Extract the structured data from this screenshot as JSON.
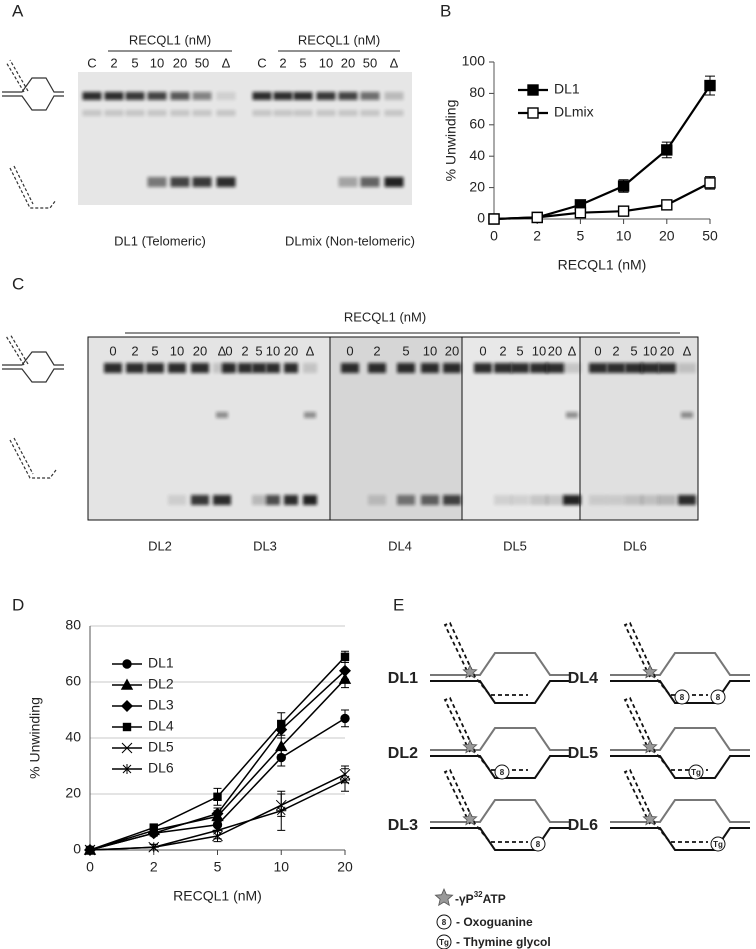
{
  "panels": [
    "A",
    "B",
    "C",
    "D",
    "E"
  ],
  "gel_a": {
    "groups": [
      {
        "header": "RECQL1 (nM)",
        "lanes": [
          "C",
          "2",
          "5",
          "10",
          "20",
          "50",
          "Δ"
        ],
        "name": "DL1 (Telomeric)"
      },
      {
        "header": "RECQL1 (nM)",
        "lanes": [
          "C",
          "2",
          "5",
          "10",
          "20",
          "50",
          "Δ"
        ],
        "name": "DLmix (Non-telomeric)"
      }
    ]
  },
  "gel_c": {
    "header": "RECQL1 (nM)",
    "groups": [
      {
        "name": "DL2",
        "lanes": [
          "0",
          "2",
          "5",
          "10",
          "20",
          "Δ"
        ]
      },
      {
        "name": "DL3",
        "lanes": [
          "0",
          "2",
          "5",
          "10",
          "20",
          "Δ"
        ]
      },
      {
        "name": "DL4",
        "lanes": [
          "0",
          "2",
          "5",
          "10",
          "20"
        ]
      },
      {
        "name": "DL5",
        "lanes": [
          "0",
          "2",
          "5",
          "10",
          "20",
          "Δ"
        ]
      },
      {
        "name": "DL6",
        "lanes": [
          "0",
          "2",
          "5",
          "10",
          "20",
          "Δ"
        ]
      }
    ]
  },
  "chart_data": [
    {
      "type": "line",
      "x_label": "RECQL1 (nM)",
      "y_label": "% Unwinding",
      "categories": [
        "0",
        "2",
        "5",
        "10",
        "20",
        "50"
      ],
      "ylim": [
        0,
        100
      ],
      "yticks": [
        0,
        20,
        40,
        60,
        80,
        100
      ],
      "grid": false,
      "legend": "top-left",
      "series": [
        {
          "name": "DL1",
          "color": "#000000",
          "marker": "square-filled",
          "values": [
            0,
            1,
            9,
            21,
            44,
            85
          ],
          "errors": [
            0,
            0,
            2,
            4,
            5,
            6
          ]
        },
        {
          "name": "DLmix",
          "color": "#000000",
          "marker": "square-open",
          "values": [
            0,
            1,
            4,
            5,
            9,
            23
          ],
          "errors": [
            0,
            0,
            1,
            3,
            2,
            4
          ]
        }
      ]
    },
    {
      "type": "line",
      "x_label": "RECQL1 (nM)",
      "y_label": "% Unwinding",
      "categories": [
        "0",
        "2",
        "5",
        "10",
        "20"
      ],
      "ylim": [
        0,
        80
      ],
      "yticks": [
        0,
        20,
        40,
        60,
        80
      ],
      "grid": true,
      "legend": "top-left",
      "series": [
        {
          "name": "DL1",
          "color": "#000000",
          "marker": "circle",
          "values": [
            0,
            6,
            9,
            33,
            47
          ],
          "errors": [
            0,
            1,
            2,
            3,
            3
          ]
        },
        {
          "name": "DL2",
          "color": "#000000",
          "marker": "triangle",
          "values": [
            0,
            7,
            12,
            37,
            61
          ],
          "errors": [
            0,
            1,
            2,
            3,
            3
          ]
        },
        {
          "name": "DL3",
          "color": "#000000",
          "marker": "diamond",
          "values": [
            0,
            6,
            13,
            43,
            64
          ],
          "errors": [
            0,
            1,
            2,
            3,
            3
          ]
        },
        {
          "name": "DL4",
          "color": "#000000",
          "marker": "square",
          "values": [
            0,
            8,
            19,
            45,
            69
          ],
          "errors": [
            0,
            1,
            3,
            4,
            2
          ]
        },
        {
          "name": "DL5",
          "color": "#000000",
          "marker": "x",
          "values": [
            0,
            1,
            5,
            16,
            27
          ],
          "errors": [
            0,
            1,
            2,
            4,
            3
          ]
        },
        {
          "name": "DL6",
          "color": "#000000",
          "marker": "star",
          "values": [
            0,
            1,
            7,
            14,
            25
          ],
          "errors": [
            0,
            1,
            3,
            7,
            4
          ]
        }
      ]
    }
  ],
  "diagram_e": {
    "constructs": [
      {
        "label": "DL1"
      },
      {
        "label": "DL2",
        "lesions": [
          "8"
        ]
      },
      {
        "label": "DL3",
        "lesions": [
          "8"
        ]
      },
      {
        "label": "DL4",
        "lesions": [
          "8",
          "8"
        ]
      },
      {
        "label": "DL5",
        "lesions": [
          "Tg"
        ]
      },
      {
        "label": "DL6",
        "lesions": [
          "Tg"
        ]
      }
    ],
    "legend": {
      "label": {
        "prefix": "-γP",
        "sup": "32",
        "suffix": "ATP"
      },
      "items": [
        {
          "symbol": "8",
          "text": "- Oxoguanine"
        },
        {
          "symbol": "Tg",
          "text": "- Thymine glycol"
        }
      ]
    }
  }
}
